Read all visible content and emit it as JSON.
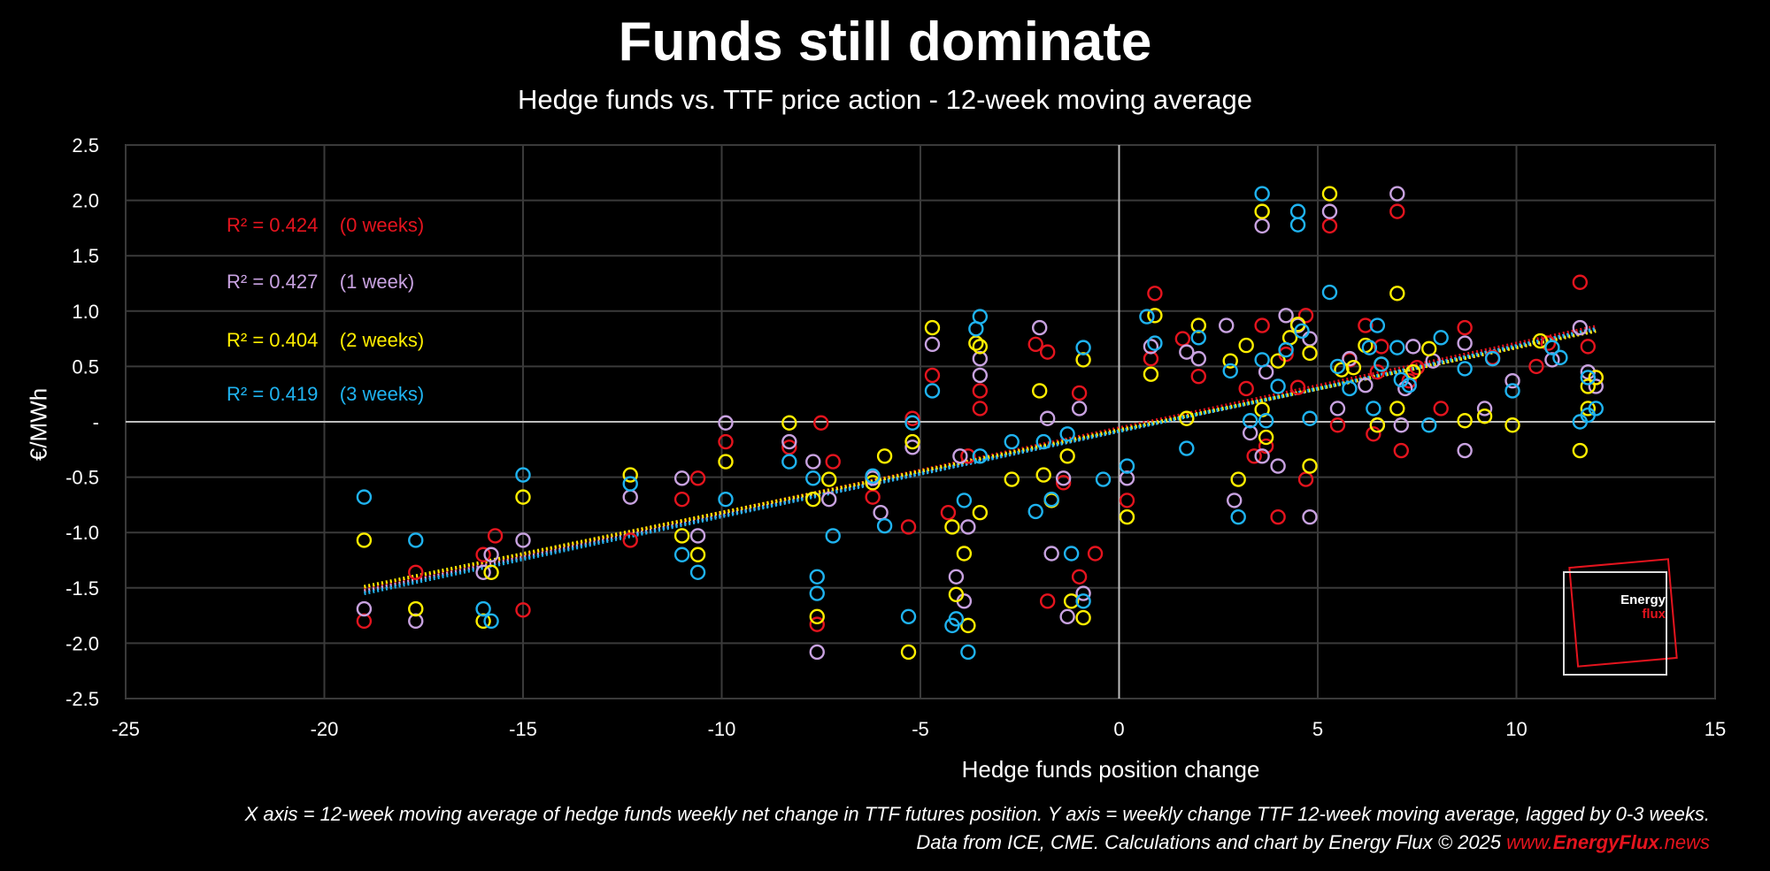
{
  "chart_data": {
    "type": "scatter",
    "title": "Funds still dominate",
    "subtitle": "Hedge funds vs. TTF price action - 12-week moving average",
    "xlabel": "Hedge funds position change",
    "ylabel": "€/MWh",
    "xlim": [
      -25,
      15
    ],
    "ylim": [
      -2.5,
      2.5
    ],
    "x_ticks": [
      -25,
      -20,
      -15,
      -10,
      -5,
      0,
      5,
      10,
      15
    ],
    "x_tick_labels": [
      "-25",
      "-20",
      "-15",
      "-10",
      "-5",
      "0",
      "5",
      "10",
      "15"
    ],
    "y_ticks": [
      2.5,
      2.0,
      1.5,
      1.0,
      0.5,
      0,
      -0.5,
      -1.0,
      -1.5,
      -2.0,
      -2.5
    ],
    "y_tick_labels": [
      "2.5",
      "2.0",
      "1.5",
      "1.0",
      "0.5",
      "-",
      "-0.5",
      "-1.0",
      "-1.5",
      "-2.0",
      "-2.5"
    ],
    "grid": true,
    "series": [
      {
        "color": "#e4141e",
        "annotation": "R² = 0.424    (0 weeks)",
        "trend": {
          "x": [
            -19,
            12
          ],
          "y": [
            -1.51,
            0.86
          ]
        },
        "points": [
          [
            -19,
            -1.8
          ],
          [
            -17.7,
            -1.36
          ],
          [
            -16,
            -1.2
          ],
          [
            -15.7,
            -1.03
          ],
          [
            -15,
            -1.7
          ],
          [
            -12.3,
            -1.07
          ],
          [
            -11,
            -0.7
          ],
          [
            -10.6,
            -0.51
          ],
          [
            -9.9,
            -0.18
          ],
          [
            -8.3,
            -0.23
          ],
          [
            -7.6,
            -1.83
          ],
          [
            -7.5,
            -0.01
          ],
          [
            -7.2,
            -0.36
          ],
          [
            -6.2,
            -0.68
          ],
          [
            -5.3,
            -0.95
          ],
          [
            -5.2,
            0.03
          ],
          [
            -4.7,
            0.42
          ],
          [
            -4.3,
            -0.82
          ],
          [
            -3.8,
            -0.31
          ],
          [
            -3.5,
            0.12
          ],
          [
            -3.5,
            0.28
          ],
          [
            -2.1,
            0.7
          ],
          [
            -1.8,
            0.63
          ],
          [
            -1.8,
            -1.62
          ],
          [
            -1.4,
            -0.55
          ],
          [
            -1.0,
            0.26
          ],
          [
            -1.0,
            -1.4
          ],
          [
            -0.6,
            -1.19
          ],
          [
            0.2,
            -0.71
          ],
          [
            0.8,
            0.57
          ],
          [
            0.9,
            1.16
          ],
          [
            1.6,
            0.75
          ],
          [
            2.0,
            0.41
          ],
          [
            3.2,
            0.3
          ],
          [
            3.4,
            -0.31
          ],
          [
            3.6,
            0.87
          ],
          [
            3.7,
            -0.22
          ],
          [
            4.0,
            -0.86
          ],
          [
            4.2,
            0.61
          ],
          [
            4.5,
            0.31
          ],
          [
            4.7,
            0.96
          ],
          [
            4.7,
            -0.52
          ],
          [
            5.3,
            1.77
          ],
          [
            5.5,
            -0.03
          ],
          [
            5.8,
            0.56
          ],
          [
            6.2,
            0.87
          ],
          [
            6.4,
            -0.11
          ],
          [
            6.5,
            0.45
          ],
          [
            6.6,
            0.68
          ],
          [
            7.0,
            1.9
          ],
          [
            7.1,
            -0.26
          ],
          [
            7.3,
            0.37
          ],
          [
            7.5,
            0.49
          ],
          [
            8.1,
            0.12
          ],
          [
            8.7,
            0.85
          ],
          [
            9.4,
            0.58
          ],
          [
            10.5,
            0.5
          ],
          [
            10.8,
            0.71
          ],
          [
            11.6,
            1.26
          ],
          [
            11.8,
            0.68
          ],
          [
            12.0,
            0.4
          ]
        ]
      },
      {
        "color": "#c8a2e0",
        "annotation": "R² = 0.427    (1 week)",
        "trend": {
          "x": [
            -19,
            12
          ],
          "y": [
            -1.53,
            0.83
          ]
        },
        "points": [
          [
            -19,
            -1.69
          ],
          [
            -17.7,
            -1.8
          ],
          [
            -16,
            -1.36
          ],
          [
            -15.8,
            -1.2
          ],
          [
            -15,
            -1.07
          ],
          [
            -12.3,
            -0.68
          ],
          [
            -11,
            -0.51
          ],
          [
            -10.6,
            -1.03
          ],
          [
            -9.9,
            -0.01
          ],
          [
            -8.3,
            -0.18
          ],
          [
            -7.7,
            -0.36
          ],
          [
            -7.6,
            -2.08
          ],
          [
            -7.3,
            -0.7
          ],
          [
            -6.2,
            -0.51
          ],
          [
            -6.0,
            -0.82
          ],
          [
            -5.2,
            -0.23
          ],
          [
            -4.7,
            0.7
          ],
          [
            -4.1,
            -1.4
          ],
          [
            -4.0,
            -0.31
          ],
          [
            -3.9,
            -1.62
          ],
          [
            -3.8,
            -0.95
          ],
          [
            -3.5,
            0.42
          ],
          [
            -3.5,
            0.57
          ],
          [
            -2.0,
            0.85
          ],
          [
            -1.8,
            0.03
          ],
          [
            -1.7,
            -1.19
          ],
          [
            -1.3,
            -1.76
          ],
          [
            -1.4,
            -0.51
          ],
          [
            -1.0,
            0.12
          ],
          [
            -0.9,
            -1.55
          ],
          [
            0.2,
            -0.51
          ],
          [
            0.8,
            0.68
          ],
          [
            1.7,
            0.63
          ],
          [
            2.0,
            0.57
          ],
          [
            2.7,
            0.87
          ],
          [
            2.9,
            -0.71
          ],
          [
            3.3,
            -0.1
          ],
          [
            3.6,
            1.77
          ],
          [
            3.6,
            -0.31
          ],
          [
            3.7,
            0.45
          ],
          [
            4.0,
            -0.4
          ],
          [
            4.2,
            0.96
          ],
          [
            4.5,
            0.87
          ],
          [
            4.8,
            -0.86
          ],
          [
            4.8,
            0.75
          ],
          [
            5.3,
            1.9
          ],
          [
            5.5,
            0.12
          ],
          [
            5.8,
            0.57
          ],
          [
            6.2,
            0.33
          ],
          [
            6.5,
            -0.03
          ],
          [
            7.0,
            2.06
          ],
          [
            7.1,
            -0.03
          ],
          [
            7.2,
            0.3
          ],
          [
            7.4,
            0.68
          ],
          [
            7.9,
            0.55
          ],
          [
            8.7,
            -0.26
          ],
          [
            8.7,
            0.71
          ],
          [
            9.2,
            0.12
          ],
          [
            9.9,
            0.37
          ],
          [
            10.9,
            0.56
          ],
          [
            11.6,
            0.85
          ],
          [
            11.8,
            0.45
          ],
          [
            12.0,
            0.32
          ]
        ]
      },
      {
        "color": "#ffee00",
        "annotation": "R² = 0.404    (2 weeks)",
        "trend": {
          "x": [
            -19,
            12
          ],
          "y": [
            -1.49,
            0.82
          ]
        },
        "points": [
          [
            -19,
            -1.07
          ],
          [
            -17.7,
            -1.69
          ],
          [
            -16,
            -1.8
          ],
          [
            -15.8,
            -1.36
          ],
          [
            -15,
            -0.68
          ],
          [
            -12.3,
            -0.48
          ],
          [
            -11,
            -1.03
          ],
          [
            -10.6,
            -1.2
          ],
          [
            -9.9,
            -0.36
          ],
          [
            -8.3,
            -0.01
          ],
          [
            -7.7,
            -0.7
          ],
          [
            -7.6,
            -1.76
          ],
          [
            -7.3,
            -0.52
          ],
          [
            -6.2,
            -0.55
          ],
          [
            -5.9,
            -0.31
          ],
          [
            -5.3,
            -2.08
          ],
          [
            -5.2,
            -0.18
          ],
          [
            -4.7,
            0.85
          ],
          [
            -4.2,
            -0.95
          ],
          [
            -4.1,
            -1.56
          ],
          [
            -3.9,
            -1.19
          ],
          [
            -3.8,
            -1.84
          ],
          [
            -3.6,
            0.71
          ],
          [
            -3.5,
            0.68
          ],
          [
            -3.5,
            -0.82
          ],
          [
            -2.7,
            -0.52
          ],
          [
            -2.0,
            0.28
          ],
          [
            -1.9,
            -0.48
          ],
          [
            -1.7,
            -0.71
          ],
          [
            -1.3,
            -0.31
          ],
          [
            -1.2,
            -1.62
          ],
          [
            -0.9,
            0.56
          ],
          [
            -0.9,
            -1.77
          ],
          [
            0.2,
            -0.86
          ],
          [
            0.8,
            0.43
          ],
          [
            0.9,
            0.96
          ],
          [
            1.7,
            0.03
          ],
          [
            2.0,
            0.87
          ],
          [
            2.8,
            0.55
          ],
          [
            3.0,
            -0.52
          ],
          [
            3.2,
            0.69
          ],
          [
            3.6,
            1.9
          ],
          [
            3.6,
            0.11
          ],
          [
            3.7,
            -0.14
          ],
          [
            4.0,
            0.55
          ],
          [
            4.3,
            0.76
          ],
          [
            4.5,
            0.88
          ],
          [
            4.8,
            -0.4
          ],
          [
            4.8,
            0.62
          ],
          [
            5.3,
            2.06
          ],
          [
            5.6,
            0.47
          ],
          [
            5.9,
            0.49
          ],
          [
            6.2,
            0.69
          ],
          [
            6.5,
            -0.03
          ],
          [
            6.6,
            0.52
          ],
          [
            7.0,
            0.12
          ],
          [
            7.0,
            1.16
          ],
          [
            7.4,
            0.45
          ],
          [
            7.8,
            0.66
          ],
          [
            8.7,
            0.01
          ],
          [
            9.2,
            0.05
          ],
          [
            9.9,
            -0.03
          ],
          [
            10.6,
            0.73
          ],
          [
            11.6,
            -0.26
          ],
          [
            11.8,
            0.12
          ],
          [
            11.8,
            0.32
          ],
          [
            12.0,
            0.4
          ]
        ]
      },
      {
        "color": "#1fb3f0",
        "annotation": "R² = 0.419    (3 weeks)",
        "trend": {
          "x": [
            -19,
            12
          ],
          "y": [
            -1.55,
            0.84
          ]
        },
        "points": [
          [
            -19,
            -0.68
          ],
          [
            -17.7,
            -1.07
          ],
          [
            -16,
            -1.69
          ],
          [
            -15.8,
            -1.8
          ],
          [
            -15,
            -0.48
          ],
          [
            -12.3,
            -0.56
          ],
          [
            -11,
            -1.2
          ],
          [
            -10.6,
            -1.36
          ],
          [
            -9.9,
            -0.7
          ],
          [
            -8.3,
            -0.36
          ],
          [
            -7.7,
            -0.51
          ],
          [
            -7.6,
            -1.55
          ],
          [
            -7.6,
            -1.4
          ],
          [
            -7.2,
            -1.03
          ],
          [
            -6.2,
            -0.49
          ],
          [
            -5.9,
            -0.94
          ],
          [
            -5.3,
            -1.76
          ],
          [
            -5.2,
            -0.01
          ],
          [
            -4.7,
            0.28
          ],
          [
            -4.2,
            -1.84
          ],
          [
            -4.1,
            -1.78
          ],
          [
            -3.9,
            -0.71
          ],
          [
            -3.8,
            -2.08
          ],
          [
            -3.6,
            0.84
          ],
          [
            -3.5,
            0.95
          ],
          [
            -3.5,
            -0.31
          ],
          [
            -2.7,
            -0.18
          ],
          [
            -2.1,
            -0.81
          ],
          [
            -1.9,
            -0.18
          ],
          [
            -1.7,
            -0.7
          ],
          [
            -1.3,
            -0.11
          ],
          [
            -1.2,
            -1.19
          ],
          [
            -0.9,
            0.67
          ],
          [
            -0.9,
            -1.62
          ],
          [
            -0.4,
            -0.52
          ],
          [
            0.2,
            -0.4
          ],
          [
            0.7,
            0.95
          ],
          [
            0.9,
            0.71
          ],
          [
            1.7,
            -0.24
          ],
          [
            2.0,
            0.76
          ],
          [
            2.8,
            0.46
          ],
          [
            3.0,
            -0.86
          ],
          [
            3.3,
            0.01
          ],
          [
            3.6,
            2.06
          ],
          [
            3.6,
            0.56
          ],
          [
            3.7,
            0.01
          ],
          [
            4.0,
            0.32
          ],
          [
            4.2,
            0.65
          ],
          [
            4.5,
            1.9
          ],
          [
            4.5,
            1.78
          ],
          [
            4.6,
            0.82
          ],
          [
            4.8,
            0.03
          ],
          [
            5.3,
            1.17
          ],
          [
            5.5,
            0.5
          ],
          [
            5.8,
            0.3
          ],
          [
            6.3,
            0.67
          ],
          [
            6.4,
            0.12
          ],
          [
            6.5,
            0.87
          ],
          [
            6.6,
            0.52
          ],
          [
            7.0,
            0.67
          ],
          [
            7.1,
            0.38
          ],
          [
            7.3,
            0.33
          ],
          [
            7.8,
            -0.03
          ],
          [
            8.1,
            0.76
          ],
          [
            8.7,
            0.48
          ],
          [
            9.4,
            0.57
          ],
          [
            9.9,
            0.28
          ],
          [
            10.9,
            0.67
          ],
          [
            11.1,
            0.58
          ],
          [
            11.6,
            0.0
          ],
          [
            11.8,
            0.06
          ],
          [
            11.8,
            0.4
          ],
          [
            12.0,
            0.12
          ]
        ]
      }
    ]
  },
  "footer": {
    "line1": "X axis = 12-week moving average of hedge funds weekly net change in TTF futures position. Y axis = weekly change TTF 12-week moving average, lagged by 0-3 weeks.",
    "line2": "Data from ICE, CME. Calculations and chart by Energy Flux © 2025 ",
    "url_prefix": "www.",
    "url_bold": "EnergyFlux",
    "url_suffix": ".news"
  },
  "logo": {
    "line1": "Energy",
    "line2": "flux"
  }
}
